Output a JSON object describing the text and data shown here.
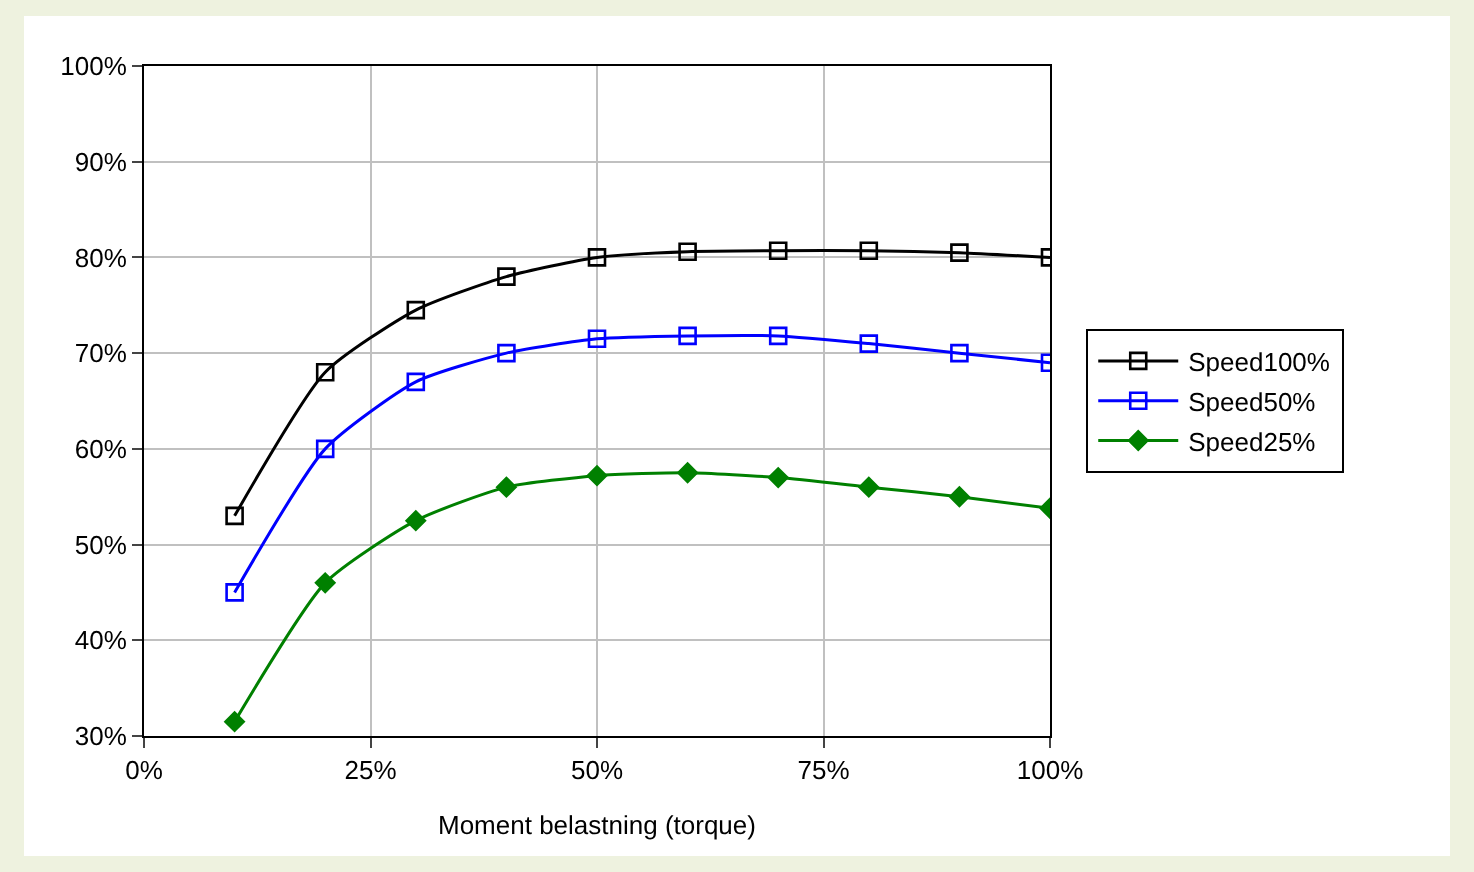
{
  "chart_data": {
    "type": "line",
    "xlabel": "Moment belastning (torque)",
    "x": [
      10,
      20,
      30,
      40,
      50,
      60,
      70,
      80,
      90,
      100
    ],
    "series": [
      {
        "name": "Speed100%",
        "color": "#000000",
        "marker": "square",
        "values": [
          53,
          68,
          74.5,
          78,
          80,
          80.6,
          80.7,
          80.7,
          80.5,
          80
        ]
      },
      {
        "name": "Speed50%",
        "color": "#0000ff",
        "marker": "square",
        "values": [
          45,
          60,
          67,
          70,
          71.5,
          71.8,
          71.8,
          71,
          70,
          69
        ]
      },
      {
        "name": "Speed25%",
        "color": "#008000",
        "marker": "diamond",
        "values": [
          31.5,
          46,
          52.5,
          56,
          57.2,
          57.5,
          57,
          56,
          55,
          53.8
        ]
      }
    ],
    "xlim": [
      0,
      100
    ],
    "xticks": [
      {
        "value": 0,
        "label": "0%"
      },
      {
        "value": 25,
        "label": "25%"
      },
      {
        "value": 50,
        "label": "50%"
      },
      {
        "value": 75,
        "label": "75%"
      },
      {
        "value": 100,
        "label": "100%"
      }
    ],
    "ylim": [
      30,
      100
    ],
    "yticks": [
      {
        "value": 30,
        "label": "30%"
      },
      {
        "value": 40,
        "label": "40%"
      },
      {
        "value": 50,
        "label": "50%"
      },
      {
        "value": 60,
        "label": "60%"
      },
      {
        "value": 70,
        "label": "70%"
      },
      {
        "value": 80,
        "label": "80%"
      },
      {
        "value": 90,
        "label": "90%"
      },
      {
        "value": 100,
        "label": "100%"
      }
    ],
    "grid": true,
    "legend": "right",
    "line_style": "solid"
  }
}
